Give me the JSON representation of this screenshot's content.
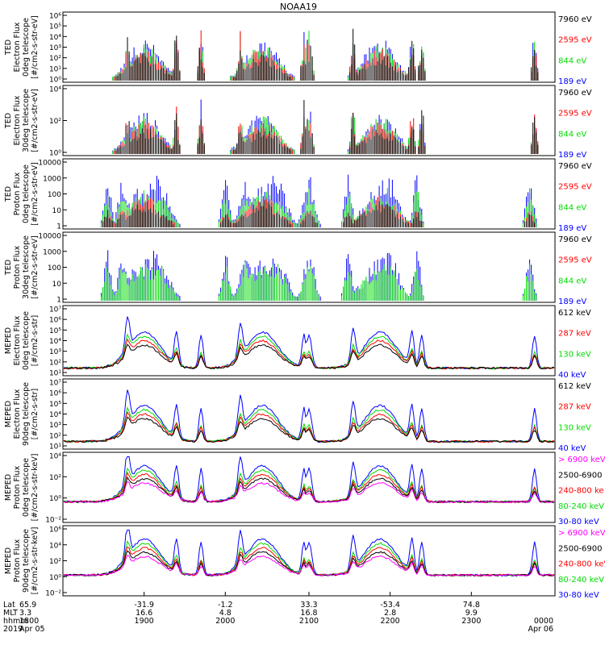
{
  "title": "NOAA19",
  "panels": [
    {
      "id": "ted-electron-0deg",
      "ylabel": [
        "TED",
        "Electron Flux",
        "0deg telescope",
        "[#/cm2-s-str-eV]"
      ],
      "yticks": [
        "10⁶",
        "10⁵",
        "10⁴",
        "10³",
        "10²",
        "10¹",
        "10⁰"
      ],
      "legend": [
        {
          "label": "7960 eV",
          "color": "#000000"
        },
        {
          "label": "2595 eV",
          "color": "#ff0000"
        },
        {
          "label": "844 eV",
          "color": "#00dd00"
        },
        {
          "label": "189 eV",
          "color": "#0000ff"
        }
      ]
    },
    {
      "id": "ted-electron-30deg",
      "ylabel": [
        "TED",
        "Electron Flux",
        "30deg telescope",
        "[#/cm2-s-str-eV]"
      ],
      "yticks": [
        "10⁴",
        "10²",
        "10⁰"
      ],
      "legend": [
        {
          "label": "7960 eV",
          "color": "#000000"
        },
        {
          "label": "2595 eV",
          "color": "#ff0000"
        },
        {
          "label": "844 eV",
          "color": "#00dd00"
        },
        {
          "label": "189 eV",
          "color": "#0000ff"
        }
      ]
    },
    {
      "id": "ted-proton-0deg",
      "ylabel": [
        "TED",
        "Proton Flux",
        "0deg telescope",
        "[#/cm2-s-str-eV]"
      ],
      "yticks": [
        "10000",
        "1000",
        "100",
        "10",
        "1"
      ],
      "legend": [
        {
          "label": "7960 eV",
          "color": "#000000"
        },
        {
          "label": "2595 eV",
          "color": "#ff0000"
        },
        {
          "label": "844 eV",
          "color": "#00dd00"
        },
        {
          "label": "189 eV",
          "color": "#0000ff"
        }
      ]
    },
    {
      "id": "ted-proton-30deg",
      "ylabel": [
        "TED",
        "Proton Flux",
        "30deg telescope",
        "[#/cm2-s-str-eV]"
      ],
      "yticks": [
        "10000",
        "1000",
        "100",
        "10",
        "1"
      ],
      "legend": [
        {
          "label": "7960 eV",
          "color": "#000000"
        },
        {
          "label": "2595 eV",
          "color": "#ff0000"
        },
        {
          "label": "844 eV",
          "color": "#00dd00"
        },
        {
          "label": "189 eV",
          "color": "#0000ff"
        }
      ]
    },
    {
      "id": "meped-electron-0deg",
      "ylabel": [
        "MEPED",
        "Electron Flux",
        "0deg telescope",
        "[#/cm2-s-str]"
      ],
      "yticks": [
        "10⁷",
        "10⁶",
        "10⁵",
        "10⁴",
        "10³",
        "10²",
        "10¹"
      ],
      "legend": [
        {
          "label": "612 keV",
          "color": "#000000"
        },
        {
          "label": "287 keV",
          "color": "#ff0000"
        },
        {
          "label": "130 keV",
          "color": "#00dd00"
        },
        {
          "label": "40 keV",
          "color": "#0000ff"
        }
      ]
    },
    {
      "id": "meped-electron-90deg",
      "ylabel": [
        "MEPED",
        "Electron Flux",
        "90deg telescope",
        "[#/cm2-s-str]"
      ],
      "yticks": [
        "10⁷",
        "10⁶",
        "10⁵",
        "10⁴",
        "10³",
        "10²",
        "10¹"
      ],
      "legend": [
        {
          "label": "612 keV",
          "color": "#000000"
        },
        {
          "label": "287 keV",
          "color": "#ff0000"
        },
        {
          "label": "130 keV",
          "color": "#00dd00"
        },
        {
          "label": "40 keV",
          "color": "#0000ff"
        }
      ]
    },
    {
      "id": "meped-proton-0deg",
      "ylabel": [
        "MEPED",
        "Proton Flux",
        "0deg telescope",
        "[#/cm2-s-str-keV]"
      ],
      "yticks": [
        "10⁴",
        "10²",
        "10⁰",
        "10⁻²"
      ],
      "legend": [
        {
          "label": "> 6900 keV",
          "color": "#ff00ff"
        },
        {
          "label": "2500-6900",
          "color": "#000000"
        },
        {
          "label": "240-800 ke",
          "color": "#ff0000"
        },
        {
          "label": "80-240 keV",
          "color": "#00dd00"
        },
        {
          "label": "30-80 keV",
          "color": "#0000ff"
        }
      ]
    },
    {
      "id": "meped-proton-90deg",
      "ylabel": [
        "MEPED",
        "Proton Flux",
        "90deg telescope",
        "[#/cm2-s-str-keV]"
      ],
      "yticks": [
        "10⁶",
        "10⁴",
        "10²",
        "10⁰",
        "10⁻²"
      ],
      "legend": [
        {
          "label": "> 6900 keV",
          "color": "#ff00ff"
        },
        {
          "label": "2500-6900",
          "color": "#000000"
        },
        {
          "label": "240-800 keV",
          "color": "#ff0000"
        },
        {
          "label": "80-240 keV",
          "color": "#00dd00"
        },
        {
          "label": "30-80 keV",
          "color": "#0000ff"
        }
      ]
    }
  ],
  "xaxis": {
    "row_labels": [
      "Lat",
      "MLT",
      "hhmm",
      "2019"
    ],
    "ticks": [
      {
        "lat": "65.9",
        "mlt": "3.3",
        "hhmm": "1800",
        "extra": "Apr 05"
      },
      {
        "lat": "-31.9",
        "mlt": "16.6",
        "hhmm": "1900",
        "extra": ""
      },
      {
        "lat": "-1.2",
        "mlt": "4.8",
        "hhmm": "2000",
        "extra": ""
      },
      {
        "lat": "33.3",
        "mlt": "16.8",
        "hhmm": "2100",
        "extra": ""
      },
      {
        "lat": "-53.4",
        "mlt": "2.8",
        "hhmm": "2200",
        "extra": ""
      },
      {
        "lat": "74.8",
        "mlt": "9.9",
        "hhmm": "2300",
        "extra": ""
      },
      {
        "lat": "",
        "mlt": "",
        "hhmm": "0000",
        "extra": "Apr 06"
      }
    ]
  },
  "chart_data": {
    "type": "line",
    "title": "NOAA19",
    "x_range": [
      "1800",
      "0000"
    ],
    "time_ticks": [
      "1800",
      "1900",
      "2000",
      "2100",
      "2200",
      "2300",
      "0000"
    ],
    "note": "Satellite particle-flux time series; 8 stacked panels with log-scaled flux, multiple energy channels each.",
    "ted_electron_0deg": {
      "ylim": [
        "10^0",
        "10^6"
      ],
      "series": [
        {
          "name": "189 eV",
          "passes_peak": [
            2.4,
            2.7,
            2.6
          ]
        },
        {
          "name": "844 eV",
          "passes_peak": [
            2.0,
            2.4,
            2.3
          ]
        },
        {
          "name": "2595 eV",
          "passes_peak": [
            2.6,
            2.8,
            2.6
          ]
        },
        {
          "name": "7960 eV",
          "passes_peak": [
            1.9,
            2.2,
            2.0
          ]
        }
      ]
    },
    "ted_electron_30deg": {
      "ylim": [
        "10^0",
        "10^5"
      ],
      "series": [
        {
          "name": "189 eV",
          "passes_peak": [
            2.0,
            2.1,
            2.1
          ]
        },
        {
          "name": "844 eV",
          "passes_peak": [
            1.8,
            2.0,
            1.9
          ]
        },
        {
          "name": "2595 eV",
          "passes_peak": [
            2.0,
            2.2,
            2.1
          ]
        },
        {
          "name": "7960 eV",
          "passes_peak": [
            1.6,
            1.8,
            1.6
          ]
        }
      ]
    },
    "ted_proton_0deg": {
      "ylim": [
        1,
        10000
      ],
      "series": [
        {
          "name": "189 eV",
          "passes_peak": [
            2000,
            3000,
            2000
          ]
        },
        {
          "name": "844 eV",
          "passes_peak": [
            1000,
            1500,
            1200
          ]
        },
        {
          "name": "2595 eV",
          "passes_peak": [
            100,
            120,
            80
          ]
        },
        {
          "name": "7960 eV",
          "passes_peak": [
            5,
            8,
            5
          ]
        }
      ]
    },
    "ted_proton_30deg": {
      "ylim": [
        1,
        10000
      ],
      "series": [
        {
          "name": "189 eV",
          "passes_peak": [
            2000,
            2500,
            2000
          ]
        },
        {
          "name": "844 eV",
          "passes_peak": [
            900,
            1200,
            1000
          ]
        }
      ]
    },
    "meped_electron_0deg": {
      "ylim": [
        "10^1",
        "10^7"
      ],
      "series": [
        {
          "name": "40 keV",
          "passes_peak": [
            4.3,
            4.7,
            4.3
          ]
        },
        {
          "name": "130 keV",
          "passes_peak": [
            4.2,
            4.6,
            4.2
          ]
        },
        {
          "name": "287 keV",
          "passes_peak": [
            4.0,
            4.4,
            4.0
          ]
        },
        {
          "name": "612 keV",
          "passes_peak": [
            2.5,
            2.6,
            2.5
          ]
        }
      ]
    },
    "meped_electron_90deg": {
      "ylim": [
        "10^1",
        "10^7"
      ],
      "series": [
        {
          "name": "40 keV",
          "passes_peak": [
            5.2,
            5.5,
            5.2
          ]
        },
        {
          "name": "130 keV",
          "passes_peak": [
            4.8,
            5.1,
            4.8
          ]
        },
        {
          "name": "287 keV",
          "passes_peak": [
            4.5,
            4.8,
            4.4
          ]
        },
        {
          "name": "612 keV",
          "passes_peak": [
            3.0,
            3.0,
            2.8
          ]
        }
      ]
    },
    "meped_proton_0deg": {
      "ylim": [
        "10^-2",
        "10^5"
      ],
      "series": [
        {
          "name": "30-80 keV",
          "passes_peak": [
            2.3,
            2.4,
            2.3
          ]
        },
        {
          "name": "80-240 keV",
          "passes_peak": [
            1.6,
            1.8,
            1.6
          ]
        },
        {
          "name": "240-800 ke",
          "passes_peak": [
            1.0,
            1.2,
            1.0
          ]
        },
        {
          "name": "2500-6900",
          "passes_peak": [
            0.3,
            0.4,
            0.3
          ]
        },
        {
          "name": "> 6900 keV",
          "passes_peak": [
            -0.8,
            -0.7,
            -0.8
          ]
        }
      ]
    },
    "meped_proton_90deg": {
      "ylim": [
        "10^-2",
        "10^6"
      ],
      "series": [
        {
          "name": "30-80 keV",
          "passes_peak": [
            2.5,
            2.6,
            2.5
          ]
        },
        {
          "name": "80-240 keV",
          "passes_peak": [
            1.8,
            2.0,
            1.8
          ]
        },
        {
          "name": "240-800 keV",
          "passes_peak": [
            1.2,
            1.4,
            1.2
          ]
        },
        {
          "name": "2500-6900",
          "passes_peak": [
            0.5,
            0.6,
            0.5
          ]
        },
        {
          "name": "> 6900 keV",
          "passes_peak": [
            -0.6,
            -0.5,
            -0.6
          ]
        }
      ]
    }
  }
}
